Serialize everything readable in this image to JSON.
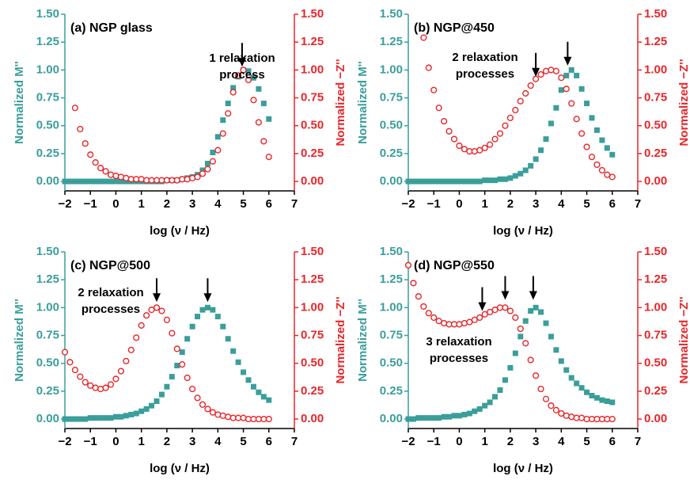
{
  "chart_data": [
    {
      "type": "scatter",
      "title": "(a) NGP glass",
      "xlabel": "log (ν / Hz)",
      "ylabel": "Normalized M''",
      "y2label": "Normalized −Z''",
      "xlim": [
        -2,
        7
      ],
      "xticks": [
        {
          "value": -2,
          "label": "−2"
        },
        {
          "value": -1,
          "label": "−1"
        },
        0,
        1,
        2,
        3,
        4,
        5,
        6,
        7
      ],
      "ylim": [
        -0.085,
        1.5
      ],
      "yticks": [
        {
          "value": 0,
          "label": "0.00"
        },
        {
          "value": 0.25,
          "label": "0.25"
        },
        {
          "value": 0.5,
          "label": "0.50"
        },
        {
          "value": 0.75,
          "label": "0.75"
        },
        {
          "value": 1,
          "label": "1.00"
        },
        {
          "value": 1.25,
          "label": "1.25"
        },
        {
          "value": 1.5,
          "label": "1.50"
        }
      ],
      "y2lim": [
        -0.085,
        1.5
      ],
      "y2ticks": [
        {
          "value": 0,
          "label": "0.00"
        },
        {
          "value": 0.25,
          "label": "0.25"
        },
        {
          "value": 0.5,
          "label": "0.50"
        },
        {
          "value": 0.75,
          "label": "0.75"
        },
        {
          "value": 1,
          "label": "1.00"
        },
        {
          "value": 1.25,
          "label": "1.25"
        },
        {
          "value": 1.5,
          "label": "1.50"
        }
      ],
      "series": [
        {
          "marker": "square",
          "color": "#3a9e9a",
          "x": [
            -2,
            -1.8,
            -1.6,
            -1.4,
            -1.2,
            -1,
            -0.8,
            -0.6,
            -0.4,
            -0.2,
            0,
            0.2,
            0.4,
            0.6,
            0.8,
            1,
            1.2,
            1.4,
            1.6,
            1.8,
            2,
            2.2,
            2.4,
            2.6,
            2.8,
            3,
            3.2,
            3.4,
            3.6,
            3.8,
            4,
            4.2,
            4.4,
            4.6,
            4.8,
            5,
            5.2,
            5.4,
            5.6,
            5.8,
            6
          ],
          "values": [
            0,
            0,
            0,
            0,
            0,
            0,
            0,
            0,
            0,
            0,
            0,
            0,
            0,
            0,
            0,
            0,
            0,
            0,
            0,
            0,
            0.01,
            0.01,
            0.01,
            0.02,
            0.03,
            0.04,
            0.06,
            0.1,
            0.16,
            0.26,
            0.4,
            0.55,
            0.7,
            0.84,
            0.94,
            1,
            0.99,
            0.93,
            0.83,
            0.7,
            0.56
          ]
        },
        {
          "marker": "circle",
          "color": "#e8262a",
          "axis": "y2",
          "x": [
            -1.6,
            -1.4,
            -1.2,
            -1,
            -0.8,
            -0.6,
            -0.4,
            -0.2,
            0,
            0.2,
            0.4,
            0.6,
            0.8,
            1,
            1.2,
            1.4,
            1.6,
            1.8,
            2,
            2.2,
            2.4,
            2.6,
            2.8,
            3,
            3.2,
            3.4,
            3.6,
            3.8,
            4,
            4.2,
            4.4,
            4.6,
            4.8,
            5,
            5.2,
            5.4,
            5.6,
            5.8,
            6
          ],
          "values": [
            0.66,
            0.47,
            0.34,
            0.24,
            0.17,
            0.12,
            0.09,
            0.06,
            0.05,
            0.04,
            0.03,
            0.02,
            0.02,
            0.02,
            0.01,
            0.01,
            0.01,
            0.01,
            0.01,
            0.01,
            0.01,
            0.02,
            0.02,
            0.03,
            0.04,
            0.07,
            0.11,
            0.18,
            0.28,
            0.43,
            0.61,
            0.8,
            0.95,
            1,
            0.91,
            0.73,
            0.53,
            0.36,
            0.22
          ]
        }
      ],
      "annotation": [
        "1 relaxation",
        "process"
      ],
      "arrows": [
        {
          "x": 4.95,
          "y": 1.03
        }
      ]
    },
    {
      "type": "scatter",
      "title": "(b) NGP@450",
      "xlabel": "log (ν / Hz)",
      "ylabel": "Normalized M''",
      "y2label": "Normalized −Z''",
      "xlim": [
        -2,
        7
      ],
      "xticks": [
        {
          "value": -2,
          "label": "−2"
        },
        {
          "value": -1,
          "label": "−1"
        },
        0,
        1,
        2,
        3,
        4,
        5,
        6,
        7
      ],
      "ylim": [
        -0.085,
        1.5
      ],
      "yticks": [
        {
          "value": 0,
          "label": "0.00"
        },
        {
          "value": 0.25,
          "label": "0.25"
        },
        {
          "value": 0.5,
          "label": "0.50"
        },
        {
          "value": 0.75,
          "label": "0.75"
        },
        {
          "value": 1,
          "label": "1.00"
        },
        {
          "value": 1.25,
          "label": "1.25"
        },
        {
          "value": 1.5,
          "label": "1.50"
        }
      ],
      "y2lim": [
        -0.085,
        1.5
      ],
      "y2ticks": [
        {
          "value": 0,
          "label": "0.00"
        },
        {
          "value": 0.25,
          "label": "0.25"
        },
        {
          "value": 0.5,
          "label": "0.50"
        },
        {
          "value": 0.75,
          "label": "0.75"
        },
        {
          "value": 1,
          "label": "1.00"
        },
        {
          "value": 1.25,
          "label": "1.25"
        },
        {
          "value": 1.5,
          "label": "1.50"
        }
      ],
      "series": [
        {
          "marker": "square",
          "color": "#3a9e9a",
          "x": [
            -2,
            -1.8,
            -1.6,
            -1.4,
            -1.2,
            -1,
            -0.8,
            -0.6,
            -0.4,
            -0.2,
            0,
            0.2,
            0.4,
            0.6,
            0.8,
            1,
            1.2,
            1.4,
            1.6,
            1.8,
            2,
            2.2,
            2.4,
            2.6,
            2.8,
            3,
            3.2,
            3.4,
            3.6,
            3.8,
            4,
            4.2,
            4.4,
            4.6,
            4.8,
            5,
            5.2,
            5.4,
            5.6,
            5.8,
            6
          ],
          "values": [
            0,
            0,
            0,
            0,
            0,
            0,
            0,
            0,
            0,
            0,
            0,
            0,
            0,
            0,
            0,
            0.01,
            0.01,
            0.01,
            0.02,
            0.02,
            0.03,
            0.05,
            0.07,
            0.1,
            0.14,
            0.2,
            0.28,
            0.38,
            0.52,
            0.66,
            0.82,
            0.95,
            1,
            0.95,
            0.83,
            0.7,
            0.57,
            0.46,
            0.37,
            0.3,
            0.24
          ]
        },
        {
          "marker": "circle",
          "color": "#e8262a",
          "axis": "y2",
          "x": [
            -1.4,
            -1.2,
            -1,
            -0.8,
            -0.6,
            -0.4,
            -0.2,
            0,
            0.2,
            0.4,
            0.6,
            0.8,
            1,
            1.2,
            1.4,
            1.6,
            1.8,
            2,
            2.2,
            2.4,
            2.6,
            2.8,
            3,
            3.2,
            3.4,
            3.6,
            3.8,
            4,
            4.2,
            4.4,
            4.6,
            4.8,
            5,
            5.2,
            5.4,
            5.6,
            5.8,
            6
          ],
          "values": [
            1.29,
            1.02,
            0.82,
            0.66,
            0.54,
            0.45,
            0.38,
            0.32,
            0.29,
            0.27,
            0.27,
            0.28,
            0.3,
            0.33,
            0.38,
            0.43,
            0.5,
            0.57,
            0.64,
            0.72,
            0.79,
            0.86,
            0.92,
            0.96,
            0.99,
            1,
            0.99,
            0.93,
            0.83,
            0.7,
            0.56,
            0.43,
            0.31,
            0.22,
            0.15,
            0.1,
            0.06,
            0.04
          ]
        }
      ],
      "annotation": [
        "2 relaxation",
        "processes"
      ],
      "arrows": [
        {
          "x": 3,
          "y": 0.94
        },
        {
          "x": 4.25,
          "y": 1.04
        }
      ]
    },
    {
      "type": "scatter",
      "title": "(c) NGP@500",
      "xlabel": "log (ν / Hz)",
      "ylabel": "Normalized M''",
      "y2label": "Normalized −Z''",
      "xlim": [
        -2,
        7
      ],
      "xticks": [
        {
          "value": -2,
          "label": "−2"
        },
        {
          "value": -1,
          "label": "−1"
        },
        0,
        1,
        2,
        3,
        4,
        5,
        6,
        7
      ],
      "ylim": [
        -0.085,
        1.5
      ],
      "yticks": [
        {
          "value": 0,
          "label": "0.00"
        },
        {
          "value": 0.25,
          "label": "0.25"
        },
        {
          "value": 0.5,
          "label": "0.50"
        },
        {
          "value": 0.75,
          "label": "0.75"
        },
        {
          "value": 1,
          "label": "1.00"
        },
        {
          "value": 1.25,
          "label": "1.25"
        },
        {
          "value": 1.5,
          "label": "1.50"
        }
      ],
      "y2lim": [
        -0.085,
        1.5
      ],
      "y2ticks": [
        {
          "value": 0,
          "label": "0.00"
        },
        {
          "value": 0.25,
          "label": "0.25"
        },
        {
          "value": 0.5,
          "label": "0.50"
        },
        {
          "value": 0.75,
          "label": "0.75"
        },
        {
          "value": 1,
          "label": "1.00"
        },
        {
          "value": 1.25,
          "label": "1.25"
        },
        {
          "value": 1.5,
          "label": "1.50"
        }
      ],
      "series": [
        {
          "marker": "square",
          "color": "#3a9e9a",
          "x": [
            -2,
            -1.8,
            -1.6,
            -1.4,
            -1.2,
            -1,
            -0.8,
            -0.6,
            -0.4,
            -0.2,
            0,
            0.2,
            0.4,
            0.6,
            0.8,
            1,
            1.2,
            1.4,
            1.6,
            1.8,
            2,
            2.2,
            2.4,
            2.6,
            2.8,
            3,
            3.2,
            3.4,
            3.6,
            3.8,
            4,
            4.2,
            4.4,
            4.6,
            4.8,
            5,
            5.2,
            5.4,
            5.6,
            5.8,
            6
          ],
          "values": [
            0,
            0,
            0,
            0,
            0,
            0.01,
            0.01,
            0.01,
            0.01,
            0.01,
            0.02,
            0.02,
            0.03,
            0.04,
            0.05,
            0.07,
            0.09,
            0.12,
            0.16,
            0.22,
            0.29,
            0.38,
            0.48,
            0.6,
            0.72,
            0.83,
            0.92,
            0.98,
            1,
            0.98,
            0.92,
            0.83,
            0.72,
            0.61,
            0.51,
            0.42,
            0.35,
            0.29,
            0.24,
            0.2,
            0.17
          ]
        },
        {
          "marker": "circle",
          "color": "#e8262a",
          "axis": "y2",
          "x": [
            -2,
            -1.8,
            -1.6,
            -1.4,
            -1.2,
            -1,
            -0.8,
            -0.6,
            -0.4,
            -0.2,
            0,
            0.2,
            0.4,
            0.6,
            0.8,
            1,
            1.2,
            1.4,
            1.6,
            1.8,
            2,
            2.2,
            2.4,
            2.6,
            2.8,
            3,
            3.2,
            3.4,
            3.6,
            3.8,
            4,
            4.2,
            4.4,
            4.6,
            4.8,
            5,
            5.2,
            5.4,
            5.6,
            5.8,
            6
          ],
          "values": [
            0.6,
            0.51,
            0.44,
            0.38,
            0.33,
            0.3,
            0.28,
            0.27,
            0.28,
            0.31,
            0.36,
            0.43,
            0.52,
            0.62,
            0.73,
            0.84,
            0.93,
            0.98,
            1,
            0.97,
            0.89,
            0.77,
            0.63,
            0.49,
            0.37,
            0.27,
            0.19,
            0.13,
            0.09,
            0.06,
            0.04,
            0.03,
            0.02,
            0.01,
            0.01,
            0.01,
            0,
            0,
            0,
            0,
            0
          ]
        }
      ],
      "annotation": [
        "2 relaxation",
        "processes"
      ],
      "arrows": [
        {
          "x": 1.6,
          "y": 1.05
        },
        {
          "x": 3.6,
          "y": 1.05
        }
      ]
    },
    {
      "type": "scatter",
      "title": "(d) NGP@550",
      "xlabel": "log (ν / Hz)",
      "ylabel": "Normalized M''",
      "y2label": "Normalized −Z''",
      "xlim": [
        -2,
        7
      ],
      "xticks": [
        {
          "value": -2,
          "label": "−2"
        },
        {
          "value": -1,
          "label": "−1"
        },
        0,
        1,
        2,
        3,
        4,
        5,
        6,
        7
      ],
      "ylim": [
        -0.085,
        1.5
      ],
      "yticks": [
        {
          "value": 0,
          "label": "0.00"
        },
        {
          "value": 0.25,
          "label": "0.25"
        },
        {
          "value": 0.5,
          "label": "0.50"
        },
        {
          "value": 0.75,
          "label": "0.75"
        },
        {
          "value": 1,
          "label": "1.00"
        },
        {
          "value": 1.25,
          "label": "1.25"
        },
        {
          "value": 1.5,
          "label": "1.50"
        }
      ],
      "y2lim": [
        -0.085,
        1.5
      ],
      "y2ticks": [
        {
          "value": 0,
          "label": "0.00"
        },
        {
          "value": 0.25,
          "label": "0.25"
        },
        {
          "value": 0.5,
          "label": "0.50"
        },
        {
          "value": 0.75,
          "label": "0.75"
        },
        {
          "value": 1,
          "label": "1.00"
        },
        {
          "value": 1.25,
          "label": "1.25"
        },
        {
          "value": 1.5,
          "label": "1.50"
        }
      ],
      "series": [
        {
          "marker": "square",
          "color": "#3a9e9a",
          "x": [
            -2,
            -1.8,
            -1.6,
            -1.4,
            -1.2,
            -1,
            -0.8,
            -0.6,
            -0.4,
            -0.2,
            0,
            0.2,
            0.4,
            0.6,
            0.8,
            1,
            1.2,
            1.4,
            1.6,
            1.8,
            2,
            2.2,
            2.4,
            2.6,
            2.8,
            3,
            3.2,
            3.4,
            3.6,
            3.8,
            4,
            4.2,
            4.4,
            4.6,
            4.8,
            5,
            5.2,
            5.4,
            5.6,
            5.8,
            6
          ],
          "values": [
            0,
            0,
            0.01,
            0.01,
            0.01,
            0.01,
            0.01,
            0.02,
            0.02,
            0.03,
            0.03,
            0.04,
            0.05,
            0.07,
            0.09,
            0.12,
            0.15,
            0.2,
            0.26,
            0.35,
            0.46,
            0.59,
            0.74,
            0.88,
            0.97,
            1,
            0.96,
            0.86,
            0.74,
            0.62,
            0.52,
            0.44,
            0.37,
            0.32,
            0.28,
            0.24,
            0.21,
            0.19,
            0.17,
            0.16,
            0.15
          ]
        },
        {
          "marker": "circle",
          "color": "#e8262a",
          "axis": "y2",
          "x": [
            -2,
            -1.8,
            -1.6,
            -1.4,
            -1.2,
            -1,
            -0.8,
            -0.6,
            -0.4,
            -0.2,
            0,
            0.2,
            0.4,
            0.6,
            0.8,
            1,
            1.2,
            1.4,
            1.6,
            1.8,
            2,
            2.2,
            2.4,
            2.6,
            2.8,
            3,
            3.2,
            3.4,
            3.6,
            3.8,
            4,
            4.2,
            4.4,
            4.6,
            4.8,
            5,
            5.2,
            5.4,
            5.6,
            5.8,
            6
          ],
          "values": [
            1.38,
            1.22,
            1.1,
            1.01,
            0.95,
            0.91,
            0.88,
            0.86,
            0.85,
            0.85,
            0.85,
            0.86,
            0.87,
            0.89,
            0.91,
            0.94,
            0.96,
            0.98,
            1,
            1,
            0.97,
            0.91,
            0.81,
            0.68,
            0.53,
            0.39,
            0.27,
            0.18,
            0.12,
            0.08,
            0.05,
            0.03,
            0.02,
            0.01,
            0.01,
            0,
            0,
            0,
            0,
            0,
            0
          ]
        }
      ],
      "annotation": [
        "3 relaxation",
        "processes"
      ],
      "arrows": [
        {
          "x": 0.9,
          "y": 0.97
        },
        {
          "x": 1.8,
          "y": 1.07
        },
        {
          "x": 2.9,
          "y": 1.07
        }
      ]
    }
  ]
}
